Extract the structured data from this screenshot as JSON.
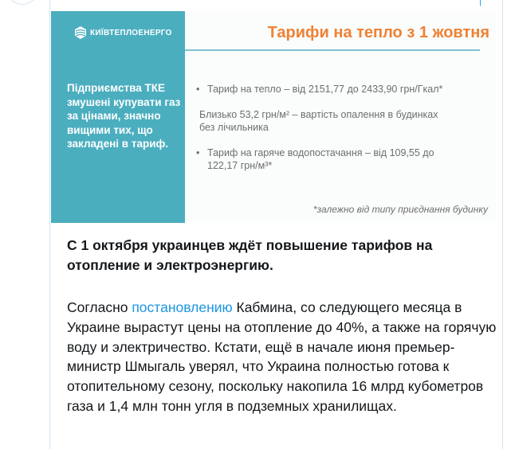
{
  "slide": {
    "logo_text": "КИЇВТЕПЛОЕНЕРГО",
    "title": "Тарифи на тепло з 1 жовтня",
    "side_text": "Підприємства ТКЕ змушені купувати газ за цінами, значно вищими тих, що закладені в тариф.",
    "bullet1": "Тариф на тепло – від 2151,77 до 2433,90 грн/Гкал*",
    "line2a": "Близько 53,2 грн/м² – вартість опалення в будинках",
    "line2b": "без лічильника",
    "bullet3a": "Тариф на гаряче водопостачання – від 109,55 до",
    "bullet3b": "122,17 грн/м³*",
    "note": "*залежно від типу приєднання будинку",
    "colors": {
      "teal": "#4baebf",
      "title": "#ee8234"
    }
  },
  "article": {
    "lead": "С 1 октября украинцев ждёт повышение тарифов на отопление и электроэнергию.",
    "body_before_link": "Согласно ",
    "link_text": "постановлению",
    "body_after_link": " Кабмина, со следующего месяца в Украине вырастут цены на отопление до 40%, а также на горячую воду и электричество. Кстати, ещё в начале июня премьер-министр Шмыгаль уверял, что Украина полностью готова к отопительному сезону, поскольку накопила 16 млрд кубометров газа и 1,4 млн тонн угля в подземных хранилищах.",
    "link_color": "#1b95e0"
  }
}
